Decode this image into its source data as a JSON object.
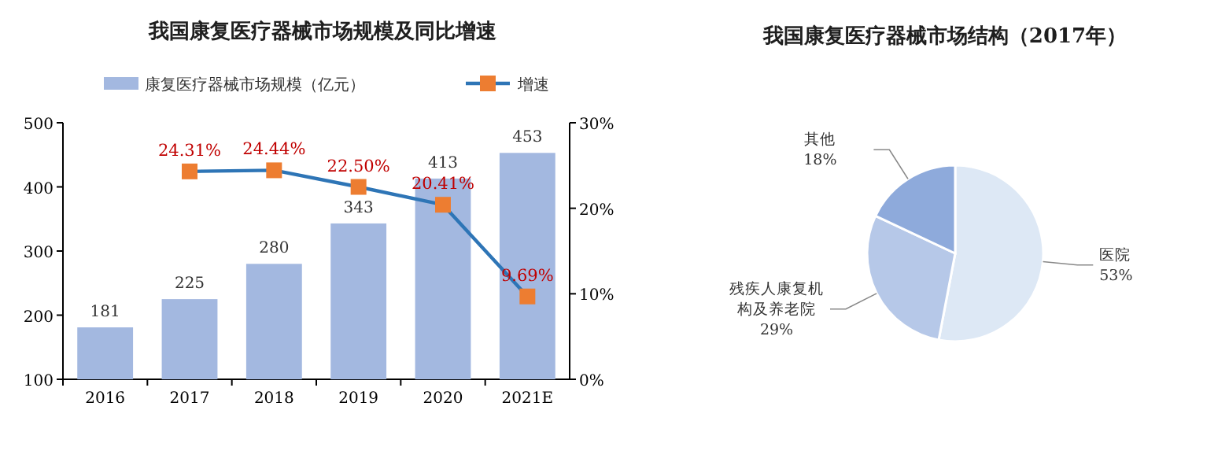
{
  "chart_data": [
    {
      "type": "bar",
      "title": "我国康复医疗器械市场规模及同比增速",
      "categories": [
        "2016",
        "2017",
        "2018",
        "2019",
        "2020",
        "2021E"
      ],
      "legend": "top",
      "ylim": [
        100,
        500
      ],
      "yticks": [
        100,
        200,
        300,
        400,
        500
      ],
      "y2lim": [
        0,
        30
      ],
      "y2ticks": [
        {
          "value": 0,
          "label": "0%"
        },
        {
          "value": 10,
          "label": "10%"
        },
        {
          "value": 20,
          "label": "20%"
        },
        {
          "value": 30,
          "label": "30%"
        }
      ],
      "series": [
        {
          "name": "康复医疗器械市场规模（亿元）",
          "type": "bar",
          "color": "#a3b8e0",
          "values": [
            181,
            225,
            280,
            343,
            413,
            453
          ],
          "value_labels": [
            "181",
            "225",
            "280",
            "343",
            "413",
            "453"
          ]
        },
        {
          "name": "增速",
          "type": "line",
          "axis": "y2",
          "color": "#2e75b6",
          "marker": "square",
          "values": [
            null,
            24.31,
            24.44,
            22.5,
            20.41,
            9.69
          ],
          "value_labels": [
            null,
            "24.31%",
            "24.44%",
            "22.50%",
            "20.41%",
            "9.69%"
          ]
        }
      ]
    },
    {
      "type": "pie",
      "title": "我国康复医疗器械市场结构（2017年）",
      "categories": [
        "医院",
        "残疾人康复机构及养老院",
        "其他"
      ],
      "values": [
        53,
        29,
        18
      ],
      "colors": [
        "#dde8f5",
        "#b6c8e8",
        "#8eaadb"
      ],
      "value_labels": [
        "53%",
        "29%",
        "18%"
      ]
    }
  ]
}
